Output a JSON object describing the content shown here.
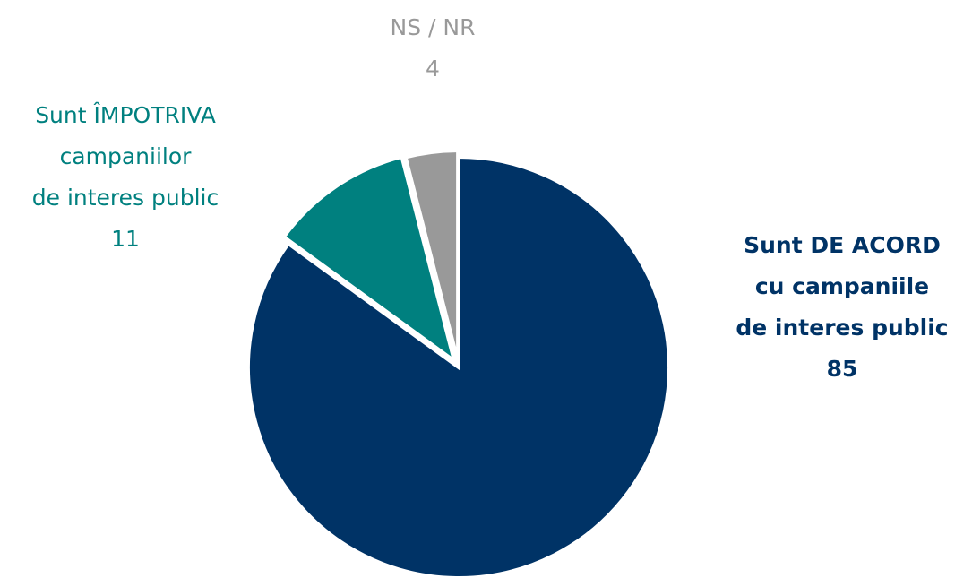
{
  "chart_data": {
    "type": "pie",
    "categories": [
      [
        "Sunt DE ACORD",
        "cu campaniile",
        "de interes public"
      ],
      [
        "Sunt ÎMPOTRIVA",
        "campaniilor",
        "de interes public"
      ],
      [
        "NS / NR"
      ]
    ],
    "values": [
      85,
      11,
      4
    ],
    "colors": [
      "#003366",
      "#00807f",
      "#999999"
    ],
    "label_bold": [
      true,
      false,
      false
    ]
  }
}
